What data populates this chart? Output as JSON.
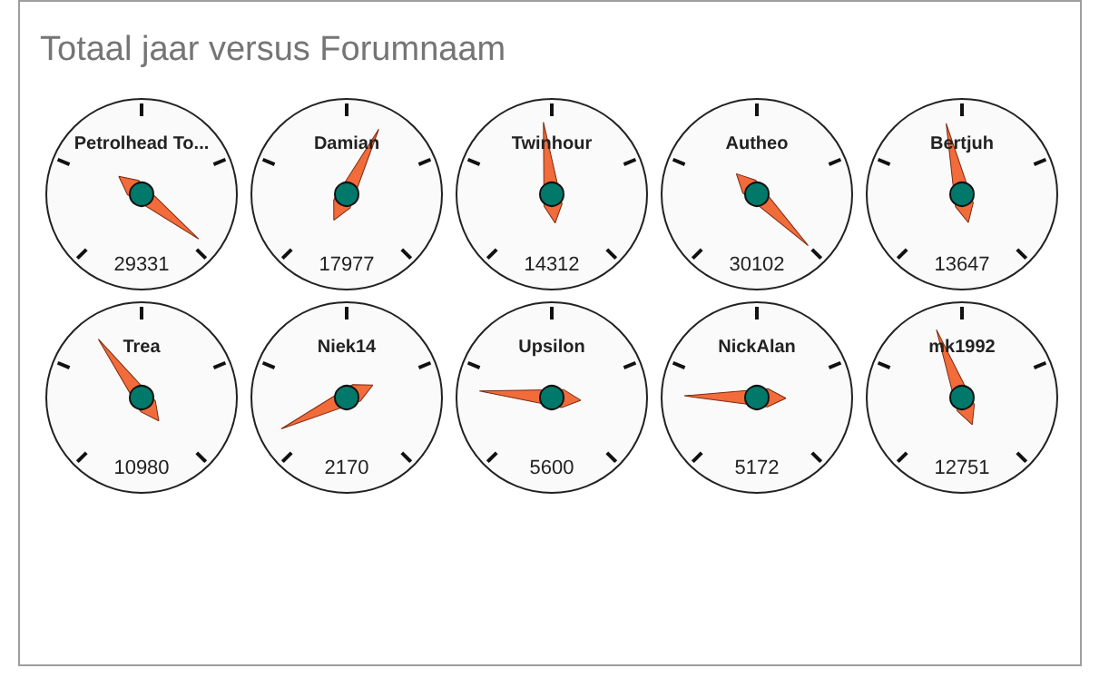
{
  "chart_data": [
    {
      "type": "other",
      "title": "Totaal jaar  versus Forumnaam"
    },
    {
      "type": "other",
      "title": "Petrolhead To...",
      "values": [
        29331
      ],
      "data_labels": true
    },
    {
      "type": "other",
      "title": "Damian",
      "values": [
        17977
      ],
      "data_labels": true
    },
    {
      "type": "other",
      "title": "Twinhour",
      "values": [
        14312
      ],
      "data_labels": true
    },
    {
      "type": "other",
      "title": "Autheo",
      "values": [
        30102
      ],
      "data_labels": true
    },
    {
      "type": "other",
      "title": "Bertjuh",
      "values": [
        13647
      ],
      "data_labels": true
    },
    {
      "type": "other",
      "title": "Trea",
      "values": [
        10980
      ],
      "data_labels": true
    },
    {
      "type": "other",
      "title": "Niek14",
      "values": [
        2170
      ],
      "data_labels": true
    },
    {
      "type": "other",
      "title": "Upsilon",
      "values": [
        5600
      ],
      "data_labels": true
    },
    {
      "type": "other",
      "title": "NickAlan",
      "values": [
        5172
      ],
      "data_labels": true
    },
    {
      "type": "other",
      "title": "mk1992",
      "values": [
        12751
      ],
      "data_labels": true
    }
  ]
}
